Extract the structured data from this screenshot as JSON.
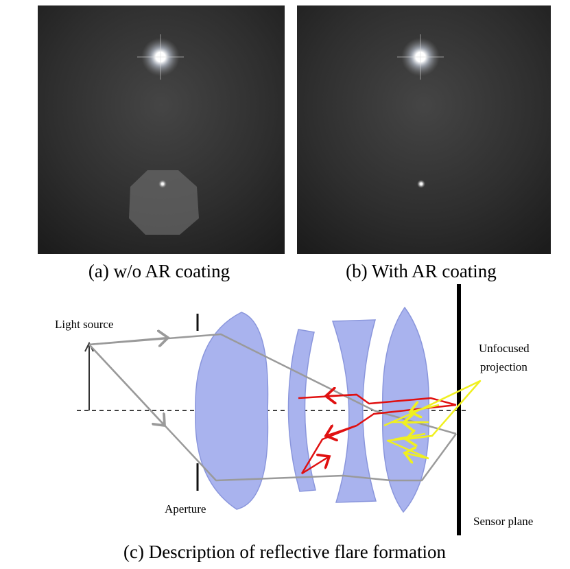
{
  "panels": [
    {
      "caption": "(a) w/o AR coating"
    },
    {
      "caption": "(b) With AR coating"
    }
  ],
  "diagram": {
    "labels": {
      "light_source": "Light source",
      "aperture": "Aperture",
      "unfocused": [
        "Unfocused",
        "projection"
      ],
      "sensor": "Sensor plane"
    },
    "caption": "(c) Description of reflective flare formation"
  }
}
